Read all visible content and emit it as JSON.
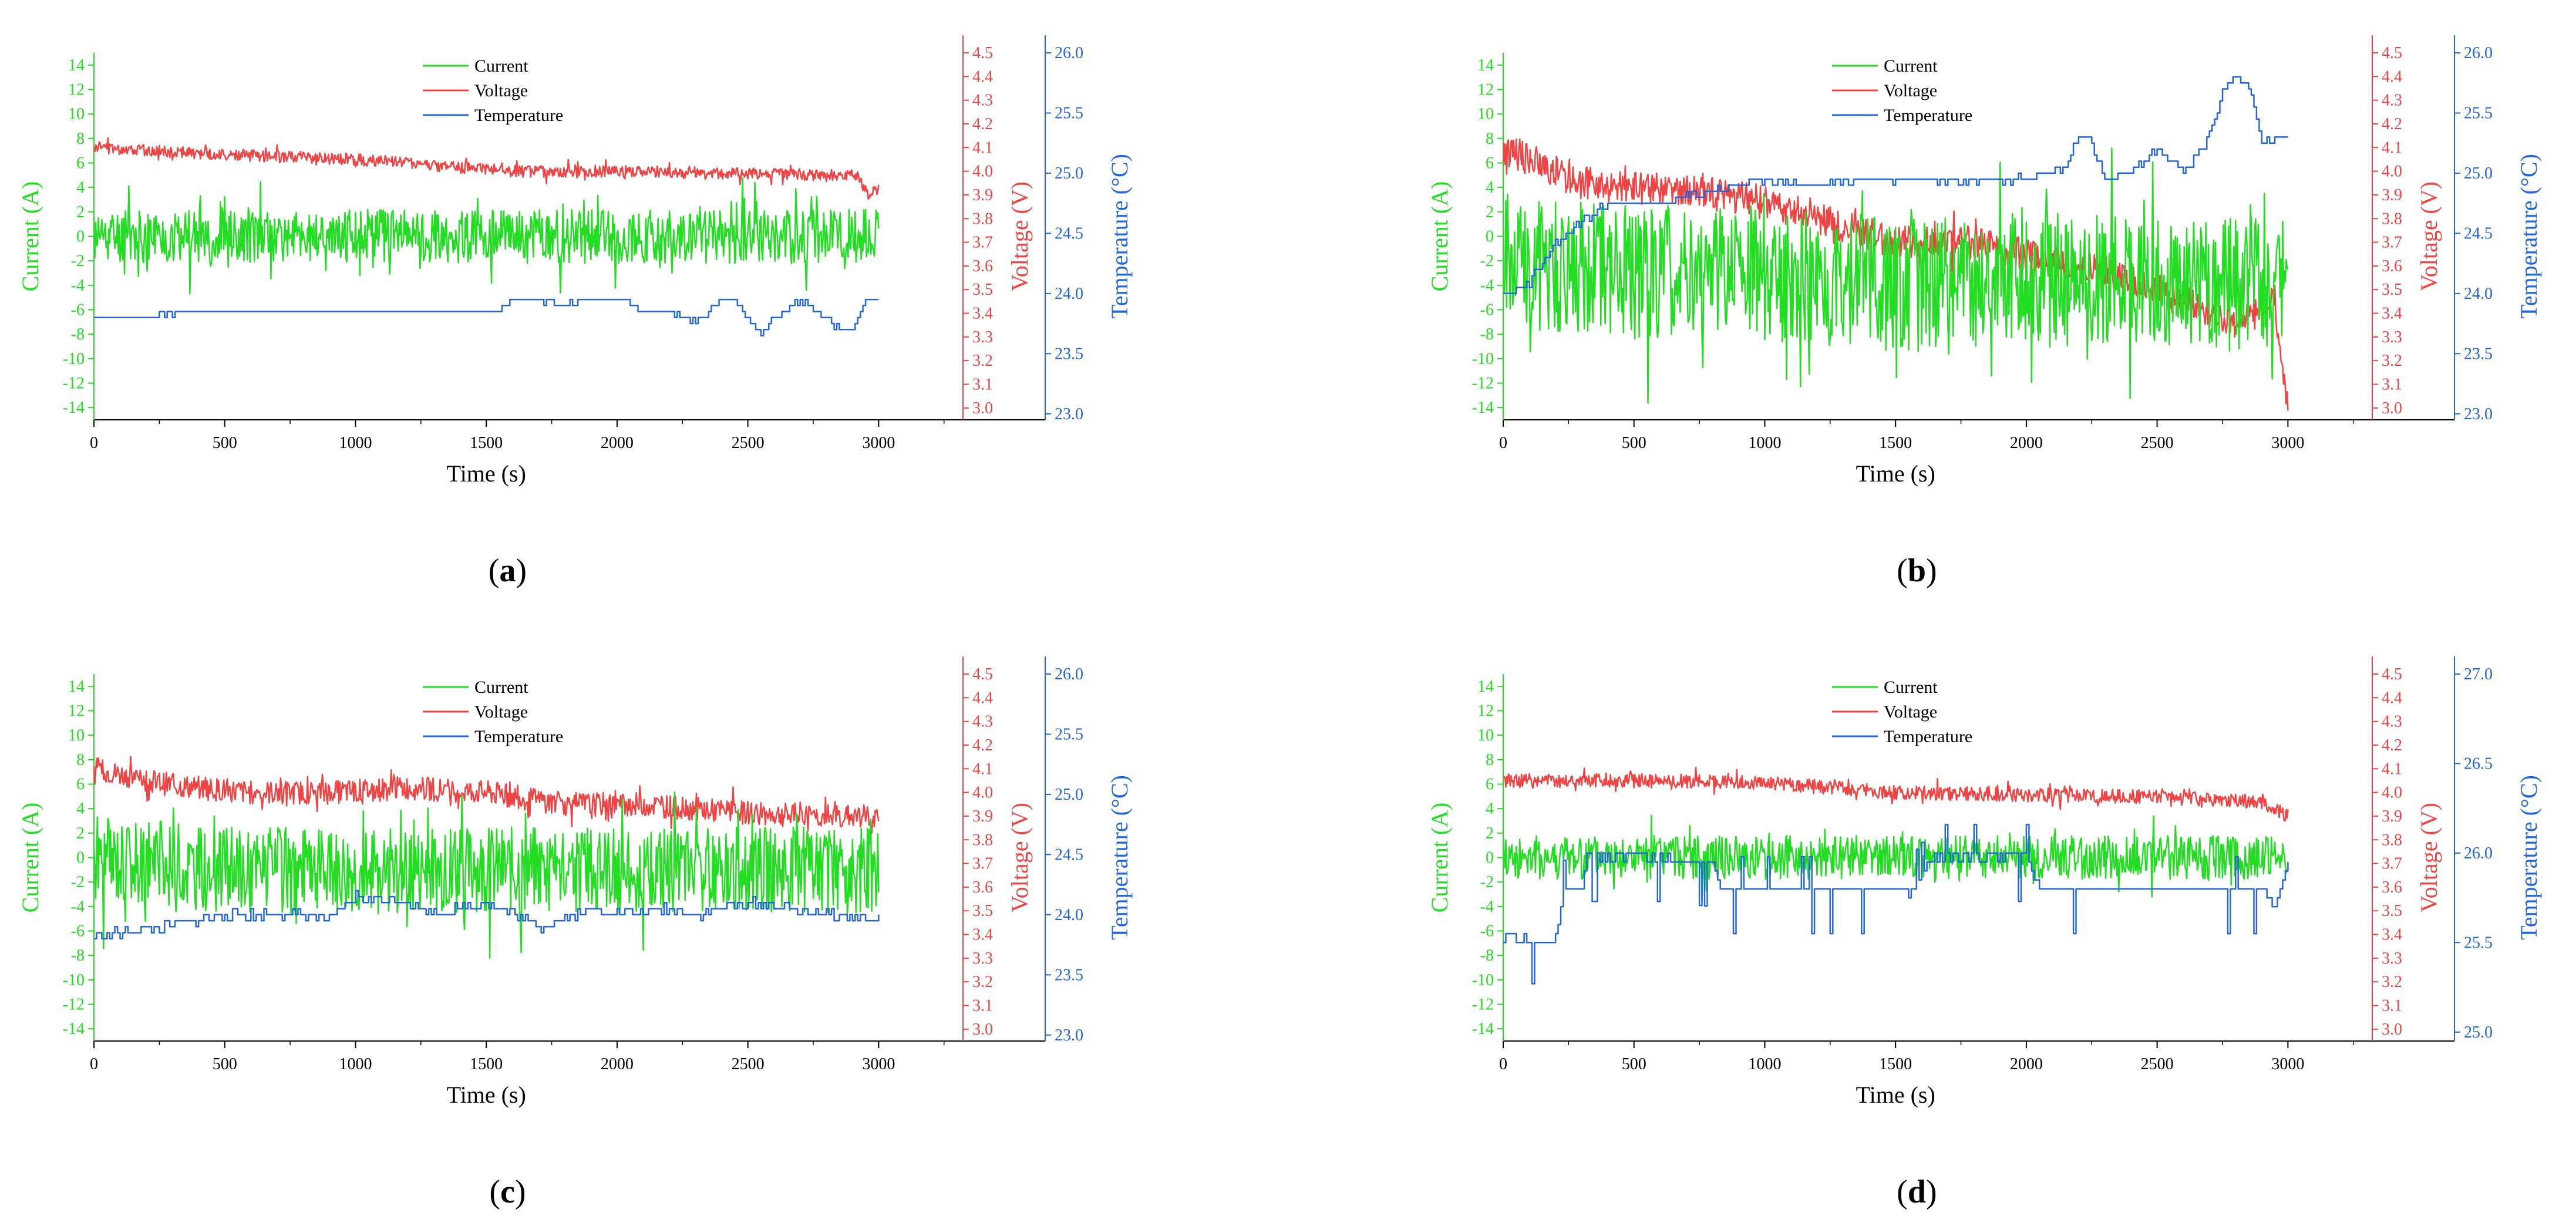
{
  "figure": {
    "panels_count": 4
  },
  "colors": {
    "current": "#22dd22",
    "voltage": "#ee4444",
    "temperature": "#2266dd"
  },
  "chart_data": [
    {
      "type": "line",
      "label": "(a)",
      "label_open": "(",
      "label_letter": "a",
      "label_close": ")",
      "xlabel": "Time (s)",
      "ylabel_left": "Current (A)",
      "ylabel_right1": "Voltage (V)",
      "ylabel_right2": "Temperature (°C)",
      "xlim": [
        0,
        3300
      ],
      "xticks": [
        0,
        500,
        1000,
        1500,
        2000,
        2500,
        3000
      ],
      "current_lim": [
        -15,
        15
      ],
      "current_ticks": [
        -14,
        -12,
        -10,
        -8,
        -6,
        -4,
        -2,
        0,
        2,
        4,
        6,
        8,
        10,
        12,
        14
      ],
      "voltage_lim": [
        2.95,
        4.5
      ],
      "voltage_ticks": [
        "3.0",
        "3.1",
        "3.2",
        "3.3",
        "3.4",
        "3.5",
        "3.6",
        "3.7",
        "3.8",
        "3.9",
        "4.0",
        "4.1",
        "4.2",
        "4.3",
        "4.4",
        "4.5"
      ],
      "temp_lim": [
        22.95,
        26.0
      ],
      "temp_ticks": [
        "23.0",
        "23.5",
        "24.0",
        "24.5",
        "25.0",
        "25.5",
        "26.0"
      ],
      "legend": [
        "Current",
        "Voltage",
        "Temperature"
      ],
      "series": [
        {
          "name": "Current",
          "x": [
            0,
            1000,
            1580,
            1620,
            3000
          ],
          "y": [
            0,
            0,
            0,
            0,
            0
          ],
          "noise": 2.2,
          "seed": 11
        },
        {
          "name": "Voltage",
          "x": [
            0,
            500,
            1000,
            1600,
            2000,
            2500,
            2920,
            2960,
            3000
          ],
          "y": [
            4.1,
            4.07,
            4.05,
            4.0,
            4.0,
            3.99,
            3.98,
            3.9,
            3.92
          ],
          "noise": 0.025,
          "seed": 12
        },
        {
          "name": "Temperature",
          "x": [
            0,
            200,
            400,
            600,
            800,
            1000,
            1200,
            1400,
            1550,
            1600,
            1700,
            1800,
            1900,
            2000,
            2100,
            2200,
            2300,
            2400,
            2450,
            2500,
            2550,
            2600,
            2700,
            2800,
            2850,
            2900,
            2950,
            3000
          ],
          "y": [
            23.8,
            23.8,
            23.85,
            23.85,
            23.85,
            23.85,
            23.85,
            23.85,
            23.85,
            23.95,
            23.95,
            23.9,
            23.95,
            23.95,
            23.85,
            23.85,
            23.75,
            23.95,
            23.95,
            23.8,
            23.65,
            23.8,
            23.95,
            23.8,
            23.7,
            23.7,
            23.95,
            23.95
          ],
          "noise": 0.02,
          "seed": 13,
          "step": true
        }
      ]
    },
    {
      "type": "line",
      "label": "(b)",
      "label_open": "(",
      "label_letter": "b",
      "label_close": ")",
      "xlabel": "Time (s)",
      "ylabel_left": "Current (A)",
      "ylabel_right1": "Voltage (V)",
      "ylabel_right2": "Temperature (°C)",
      "xlim": [
        0,
        3300
      ],
      "xticks": [
        0,
        500,
        1000,
        1500,
        2000,
        2500,
        3000
      ],
      "current_lim": [
        -15,
        15
      ],
      "current_ticks": [
        -14,
        -12,
        -10,
        -8,
        -6,
        -4,
        -2,
        0,
        2,
        4,
        6,
        8,
        10,
        12,
        14
      ],
      "voltage_lim": [
        2.95,
        4.5
      ],
      "voltage_ticks": [
        "3.0",
        "3.1",
        "3.2",
        "3.3",
        "3.4",
        "3.5",
        "3.6",
        "3.7",
        "3.8",
        "3.9",
        "4.0",
        "4.1",
        "4.2",
        "4.3",
        "4.4",
        "4.5"
      ],
      "temp_lim": [
        22.95,
        26.0
      ],
      "temp_ticks": [
        "23.0",
        "23.5",
        "24.0",
        "24.5",
        "25.0",
        "25.5",
        "26.0"
      ],
      "legend": [
        "Current",
        "Voltage",
        "Temperature"
      ],
      "series": [
        {
          "name": "Current",
          "x": [
            0,
            500,
            1000,
            1500,
            2000,
            2500,
            3000
          ],
          "y": [
            -2,
            -3,
            -3,
            -4,
            -3.5,
            -4,
            -4
          ],
          "noise": 5.5,
          "seed": 21
        },
        {
          "name": "Voltage",
          "x": [
            0,
            300,
            600,
            900,
            1200,
            1500,
            1800,
            2100,
            2400,
            2700,
            2800,
            2950,
            3000
          ],
          "y": [
            4.1,
            3.95,
            3.92,
            3.9,
            3.8,
            3.7,
            3.7,
            3.62,
            3.55,
            3.4,
            3.35,
            3.45,
            3.0
          ],
          "noise": 0.07,
          "seed": 22
        },
        {
          "name": "Temperature",
          "x": [
            0,
            100,
            200,
            300,
            400,
            600,
            800,
            1000,
            1200,
            1400,
            1600,
            1800,
            2000,
            2150,
            2200,
            2250,
            2300,
            2400,
            2500,
            2600,
            2700,
            2750,
            2800,
            2850,
            2900,
            3000
          ],
          "y": [
            23.95,
            24.1,
            24.4,
            24.6,
            24.75,
            24.75,
            24.85,
            24.95,
            24.9,
            24.95,
            24.95,
            24.95,
            24.95,
            25.05,
            25.35,
            25.25,
            24.95,
            25.0,
            25.2,
            25.0,
            25.3,
            25.7,
            25.8,
            25.7,
            25.25,
            25.3
          ],
          "noise": 0.03,
          "seed": 23,
          "step": true
        }
      ]
    },
    {
      "type": "line",
      "label": "(c)",
      "label_open": "(",
      "label_letter": "c",
      "label_close": ")",
      "xlabel": "Time (s)",
      "ylabel_left": "Current (A)",
      "ylabel_right1": "Voltage (V)",
      "ylabel_right2": "Temperature (°C)",
      "xlim": [
        0,
        3300
      ],
      "xticks": [
        0,
        500,
        1000,
        1500,
        2000,
        2500,
        3000
      ],
      "current_lim": [
        -15,
        15
      ],
      "current_ticks": [
        -14,
        -12,
        -10,
        -8,
        -6,
        -4,
        -2,
        0,
        2,
        4,
        6,
        8,
        10,
        12,
        14
      ],
      "voltage_lim": [
        2.95,
        4.5
      ],
      "voltage_ticks": [
        "3.0",
        "3.1",
        "3.2",
        "3.3",
        "3.4",
        "3.5",
        "3.6",
        "3.7",
        "3.8",
        "3.9",
        "4.0",
        "4.1",
        "4.2",
        "4.3",
        "4.4",
        "4.5"
      ],
      "temp_lim": [
        22.95,
        26.0
      ],
      "temp_ticks": [
        "23.0",
        "23.5",
        "24.0",
        "24.5",
        "25.0",
        "25.5",
        "26.0"
      ],
      "legend": [
        "Current",
        "Voltage",
        "Temperature"
      ],
      "series": [
        {
          "name": "Current",
          "x": [
            0,
            500,
            1000,
            1500,
            2000,
            2500,
            3000
          ],
          "y": [
            0,
            -1,
            -1,
            -1,
            -1,
            -1,
            -1
          ],
          "noise": 3.5,
          "seed": 31
        },
        {
          "name": "Voltage",
          "x": [
            0,
            300,
            600,
            900,
            1200,
            1500,
            1800,
            2100,
            2400,
            2700,
            2950,
            3000
          ],
          "y": [
            4.1,
            4.03,
            4.0,
            4.0,
            4.02,
            4.0,
            3.95,
            3.95,
            3.92,
            3.9,
            3.9,
            3.88
          ],
          "noise": 0.05,
          "seed": 32
        },
        {
          "name": "Temperature",
          "x": [
            0,
            100,
            300,
            500,
            800,
            900,
            1000,
            1200,
            1300,
            1500,
            1700,
            1900,
            2000,
            2200,
            2300,
            2500,
            2800,
            3000
          ],
          "y": [
            23.8,
            23.85,
            23.9,
            24.0,
            24.0,
            23.95,
            24.15,
            24.1,
            24.0,
            24.1,
            23.9,
            24.05,
            24.0,
            24.05,
            24.0,
            24.1,
            24.0,
            23.95
          ],
          "noise": 0.04,
          "seed": 33,
          "step": true
        }
      ]
    },
    {
      "type": "line",
      "label": "(d)",
      "label_open": "(",
      "label_letter": "d",
      "label_close": ")",
      "xlabel": "Time (s)",
      "ylabel_left": "Current (A)",
      "ylabel_right1": "Voltage (V)",
      "ylabel_right2": "Temperature (°C)",
      "xlim": [
        0,
        3300
      ],
      "xticks": [
        0,
        500,
        1000,
        1500,
        2000,
        2500,
        3000
      ],
      "current_lim": [
        -15,
        15
      ],
      "current_ticks": [
        -14,
        -12,
        -10,
        -8,
        -6,
        -4,
        -2,
        0,
        2,
        4,
        6,
        8,
        10,
        12,
        14
      ],
      "voltage_lim": [
        2.95,
        4.5
      ],
      "voltage_ticks": [
        "3.0",
        "3.1",
        "3.2",
        "3.3",
        "3.4",
        "3.5",
        "3.6",
        "3.7",
        "3.8",
        "3.9",
        "4.0",
        "4.1",
        "4.2",
        "4.3",
        "4.4",
        "4.5"
      ],
      "temp_lim": [
        24.95,
        27.0
      ],
      "temp_ticks": [
        "25.0",
        "25.5",
        "26.0",
        "26.5",
        "27.0"
      ],
      "legend": [
        "Current",
        "Voltage",
        "Temperature"
      ],
      "series": [
        {
          "name": "Current",
          "x": [
            0,
            500,
            1000,
            1500,
            2000,
            2500,
            3000
          ],
          "y": [
            0,
            0,
            0,
            0,
            0,
            0,
            0
          ],
          "noise": 1.8,
          "seed": 41
        },
        {
          "name": "Voltage",
          "x": [
            0,
            500,
            1000,
            1500,
            2000,
            2500,
            2900,
            3000
          ],
          "y": [
            4.05,
            4.05,
            4.04,
            4.0,
            3.99,
            3.98,
            3.96,
            3.9
          ],
          "noise": 0.03,
          "seed": 42
        },
        {
          "name": "Temperature",
          "x": [
            0,
            200,
            230,
            300,
            320,
            600,
            800,
            830,
            1200,
            1500,
            1550,
            1650,
            2000,
            2050,
            2500,
            2900,
            2950,
            3000
          ],
          "y": [
            25.52,
            25.52,
            25.78,
            25.78,
            25.98,
            25.98,
            25.95,
            25.8,
            25.8,
            25.8,
            25.78,
            25.98,
            25.98,
            25.8,
            25.8,
            25.8,
            25.7,
            25.95
          ],
          "noise": 0.01,
          "seed": 43,
          "step": true,
          "spikes": true
        }
      ]
    }
  ]
}
